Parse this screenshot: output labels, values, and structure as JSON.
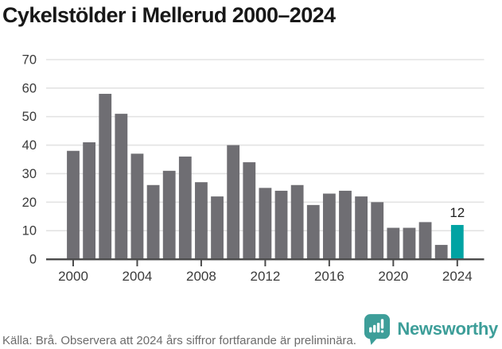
{
  "title": "Cykelstölder i Mellerud 2000–2024",
  "chart_data": {
    "type": "bar",
    "x": [
      2000,
      2001,
      2002,
      2003,
      2004,
      2005,
      2006,
      2007,
      2008,
      2009,
      2010,
      2011,
      2012,
      2013,
      2014,
      2015,
      2016,
      2017,
      2018,
      2019,
      2020,
      2021,
      2022,
      2023,
      2024
    ],
    "values": [
      38,
      41,
      58,
      51,
      37,
      26,
      31,
      36,
      27,
      22,
      40,
      34,
      25,
      24,
      26,
      19,
      23,
      24,
      22,
      20,
      11,
      11,
      13,
      5,
      12
    ],
    "title": "Cykelstölder i Mellerud 2000–2024",
    "xlabel": "",
    "ylabel": "",
    "ylim": [
      0,
      70
    ],
    "y_ticks": [
      0,
      10,
      20,
      30,
      40,
      50,
      60,
      70
    ],
    "x_ticks": [
      2000,
      2004,
      2008,
      2012,
      2016,
      2020,
      2024
    ],
    "grid": true,
    "legend": false,
    "bar_color": "#6f6e73",
    "highlight_color": "#00a3a3",
    "highlight": {
      "year": 2024,
      "value": 12,
      "label": "12"
    }
  },
  "footer": {
    "source": "Källa: Brå. Observera att 2024 års siffror fortfarande är preliminära."
  },
  "logo": {
    "brand": "Newsworthy",
    "color": "#3d9e99",
    "icon": "speech-bubble-bar-chart"
  }
}
